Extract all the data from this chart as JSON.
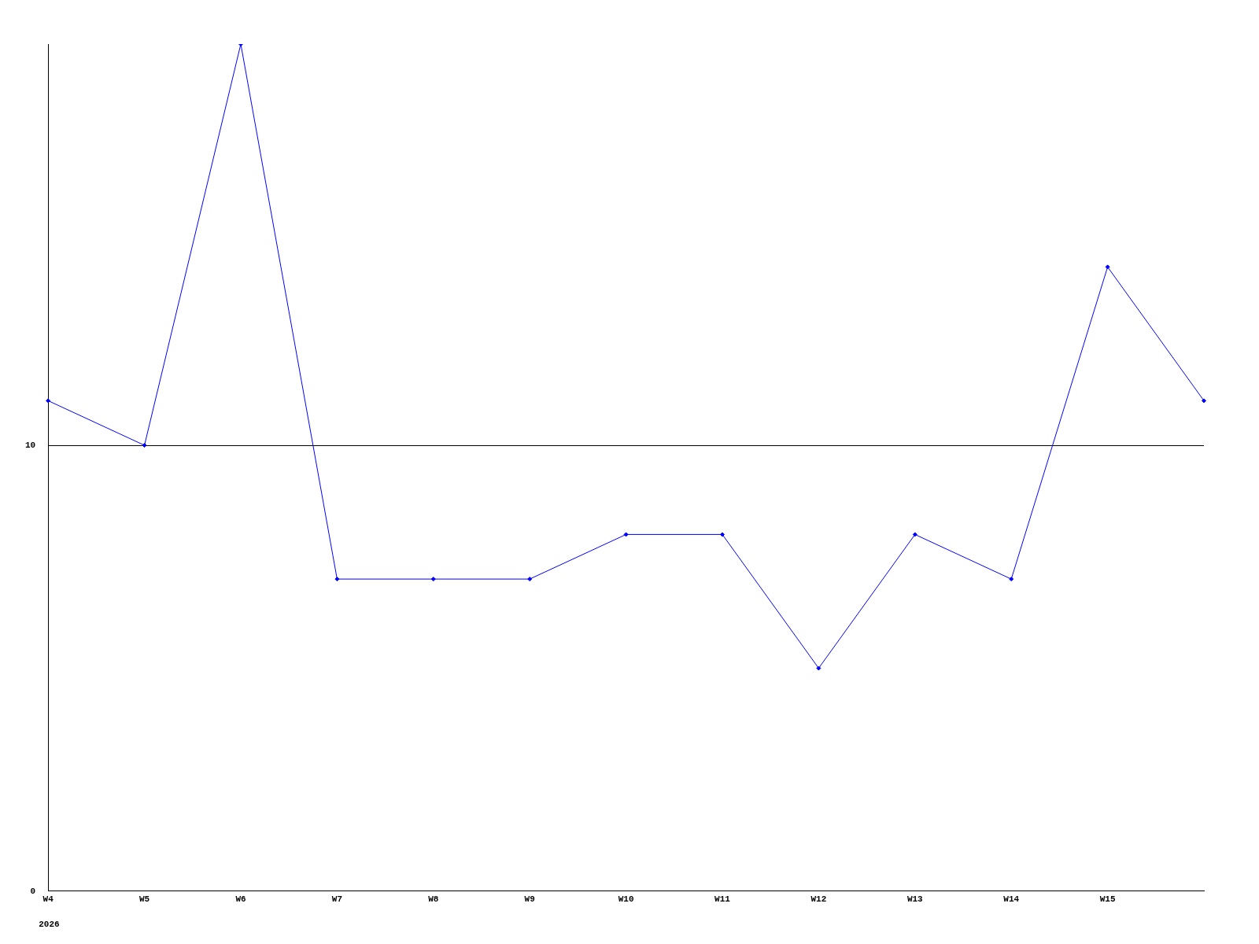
{
  "chart_data": {
    "type": "line",
    "categories": [
      "W4",
      "W5",
      "W6",
      "W7",
      "W8",
      "W9",
      "W10",
      "W11",
      "W12",
      "W13",
      "W14",
      "W15",
      null
    ],
    "series": [
      {
        "color": "#0000ff",
        "values": [
          11,
          10,
          19,
          7,
          7,
          7,
          8,
          8,
          5,
          8,
          7,
          14,
          11
        ]
      }
    ],
    "ylim": [
      0,
      19
    ],
    "yticks": [
      0,
      10
    ],
    "grid": "y",
    "legend": false,
    "marker": "diamond",
    "line_style": "solid",
    "annotations": [
      "2026"
    ]
  }
}
